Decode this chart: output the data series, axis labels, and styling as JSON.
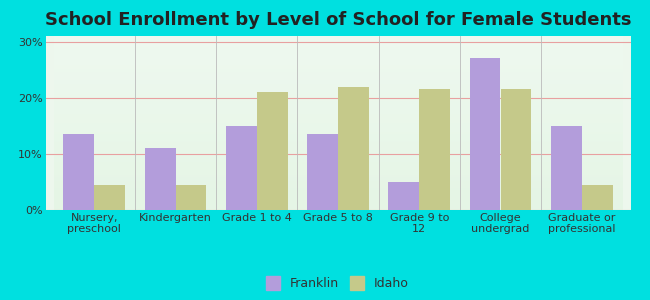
{
  "title": "School Enrollment by Level of School for Female Students",
  "categories": [
    "Nursery,\npreschool",
    "Kindergarten",
    "Grade 1 to 4",
    "Grade 5 to 8",
    "Grade 9 to\n12",
    "College\nundergrad",
    "Graduate or\nprofessional"
  ],
  "franklin_values": [
    13.5,
    11.0,
    15.0,
    13.5,
    5.0,
    27.0,
    15.0
  ],
  "idaho_values": [
    4.5,
    4.5,
    21.0,
    22.0,
    21.5,
    21.5,
    4.5
  ],
  "franklin_color": "#b39ddb",
  "idaho_color": "#c5c98a",
  "plot_bg_top": "#e8f5e8",
  "plot_bg_bottom": "#f5fff5",
  "yticks": [
    0,
    10,
    20,
    30
  ],
  "ylim": [
    0,
    31
  ],
  "legend_labels": [
    "Franklin",
    "Idaho"
  ],
  "bar_width": 0.38,
  "title_fontsize": 13,
  "tick_fontsize": 8,
  "legend_fontsize": 9,
  "outer_bg": "#00e0e0",
  "grid_color": "#e8a0a0",
  "separator_color": "#bbbbbb"
}
